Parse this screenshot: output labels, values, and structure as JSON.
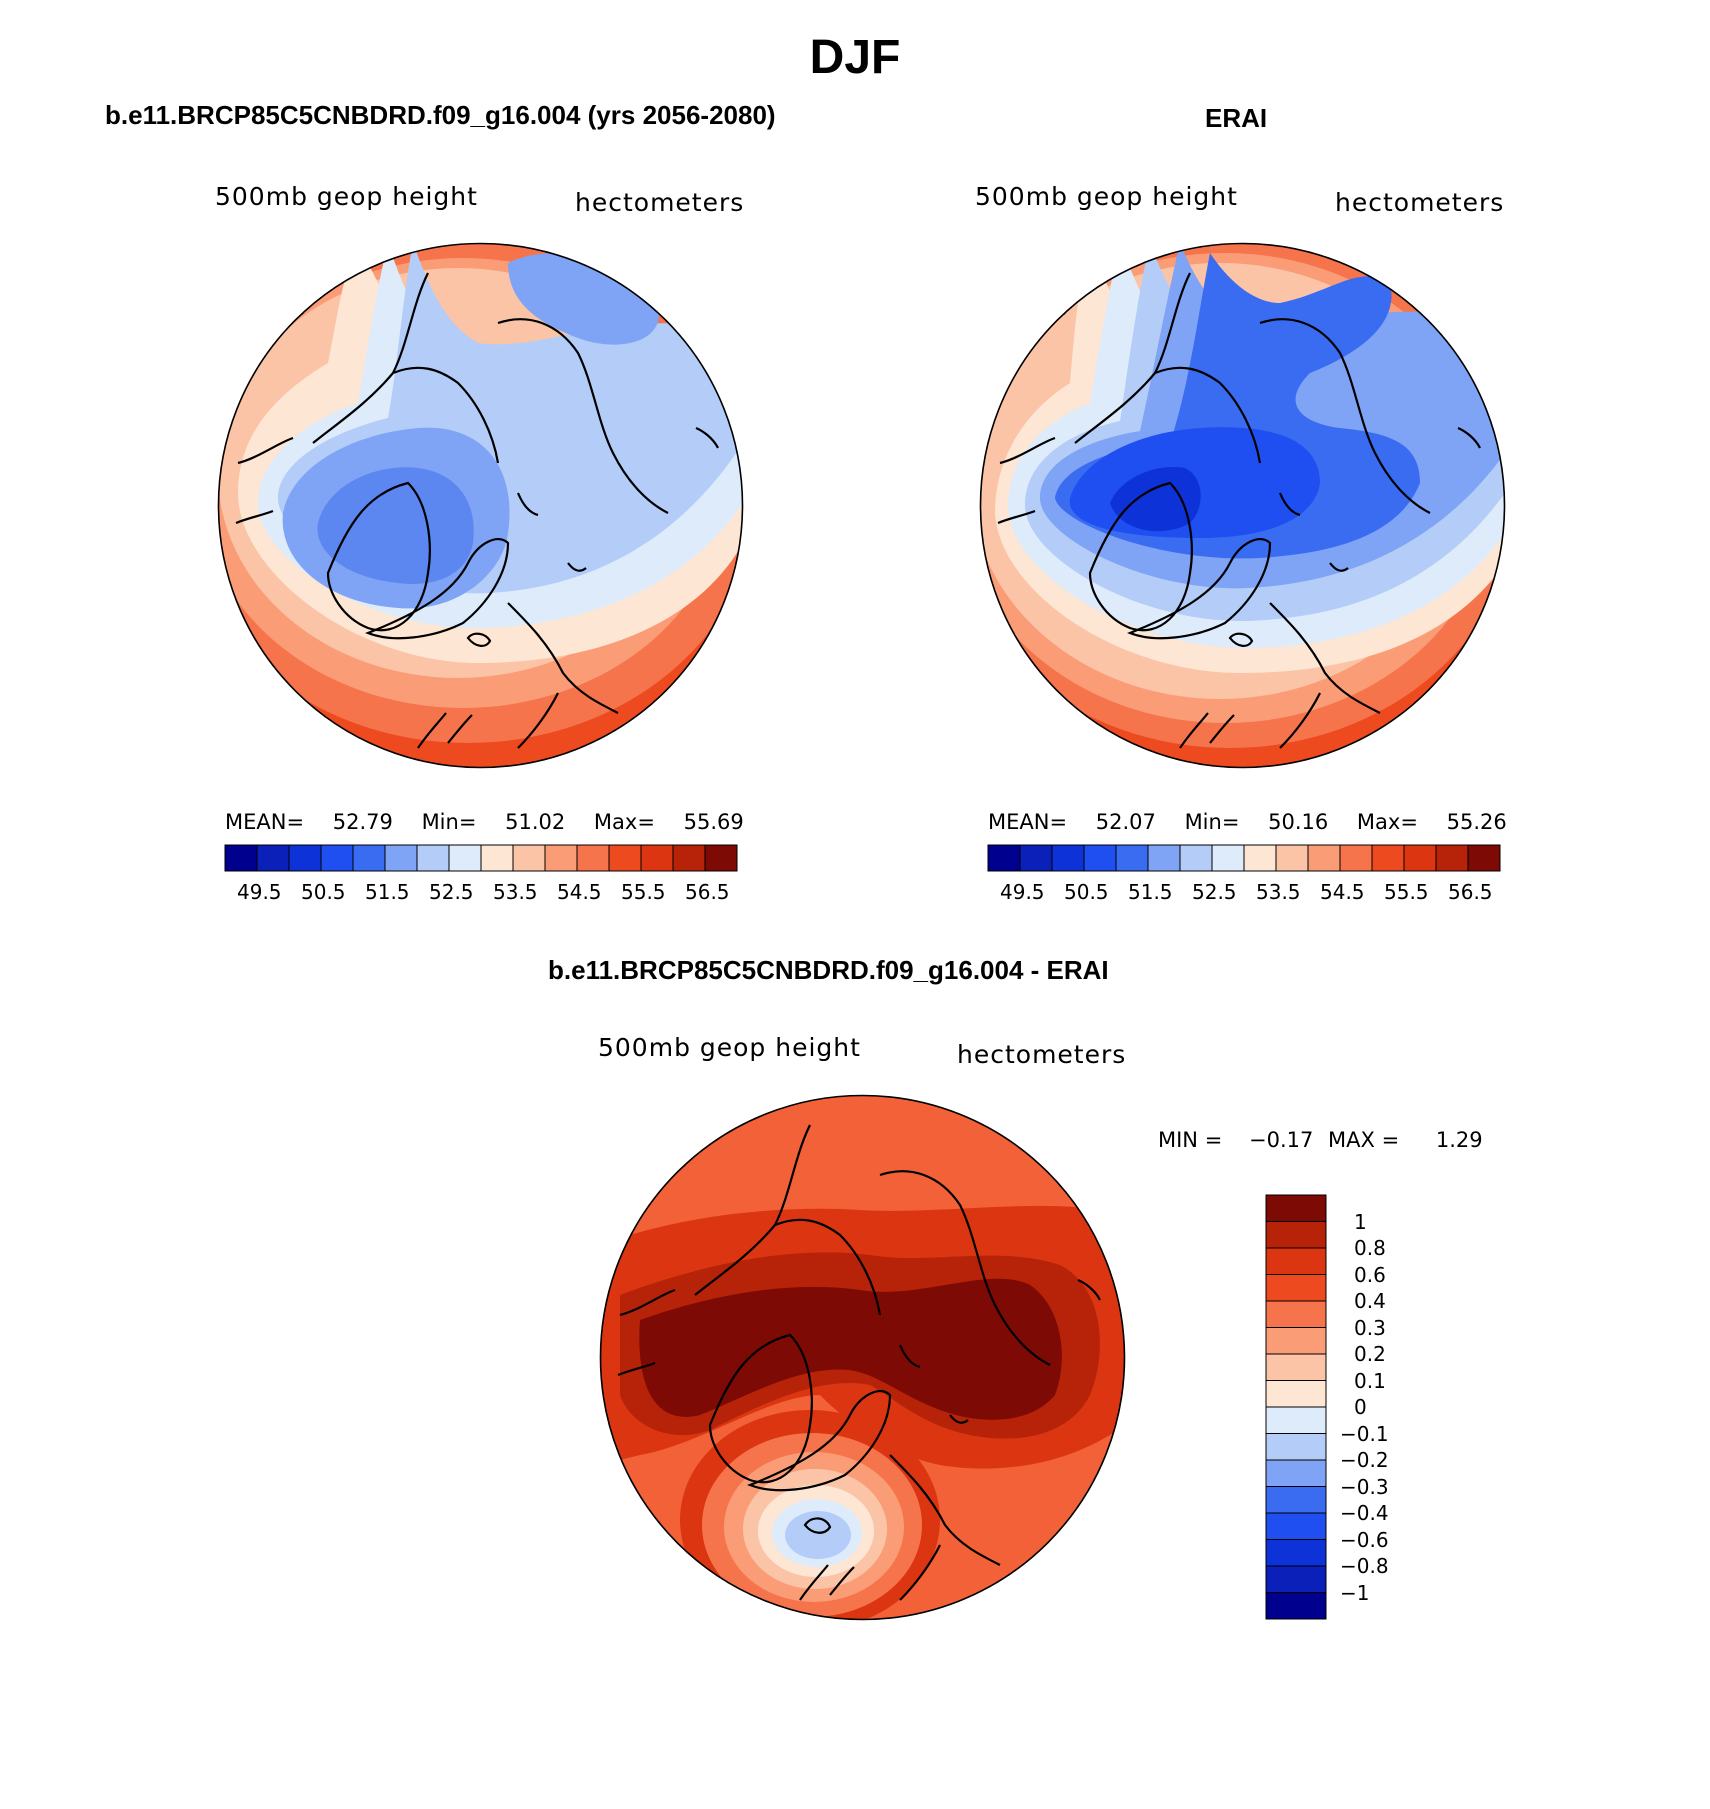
{
  "title": "DJF",
  "panels": [
    {
      "title": "b.e11.BRCP85C5CNBDRD.f09_g16.004 (yrs 2056-2080)",
      "field_label": "500mb geop height",
      "units": "hectometers",
      "stats": {
        "mean_label": "MEAN=",
        "mean": "52.79",
        "min_label": "Min=",
        "min": "51.02",
        "max_label": "Max=",
        "max": "55.69"
      }
    },
    {
      "title": "ERAI",
      "field_label": "500mb geop height",
      "units": "hectometers",
      "stats": {
        "mean_label": "MEAN=",
        "mean": "52.07",
        "min_label": "Min=",
        "min": "50.16",
        "max_label": "Max=",
        "max": "55.26"
      }
    },
    {
      "title": "b.e11.BRCP85C5CNBDRD.f09_g16.004 - ERAI",
      "field_label": "500mb geop height",
      "units": "hectometers",
      "stats": {
        "min_label": "MIN =",
        "min": "−0.17",
        "max_label": "MAX =",
        "max": "1.29"
      }
    }
  ],
  "colorbar_abs": {
    "colors": [
      "#00008f",
      "#0a20b8",
      "#0d33d8",
      "#1f4ff0",
      "#3a6cf2",
      "#7fa3f5",
      "#b3cdf8",
      "#deebfb",
      "#fde6d4",
      "#fcc4a6",
      "#fa9d77",
      "#f6744b",
      "#ee4a20",
      "#db3611",
      "#b62308",
      "#7d0a04"
    ],
    "ticks": [
      "49.5",
      "50.5",
      "51.5",
      "52.5",
      "53.5",
      "54.5",
      "55.5",
      "56.5"
    ]
  },
  "colorbar_diff": {
    "colors": [
      "#7d0a04",
      "#b62308",
      "#db3611",
      "#ee4a20",
      "#f6744b",
      "#fa9d77",
      "#fcc4a6",
      "#fde6d4",
      "#deebfb",
      "#b3cdf8",
      "#7fa3f5",
      "#3a6cf2",
      "#1f4ff0",
      "#0d33d8",
      "#0a20b8",
      "#00008f"
    ],
    "ticks": [
      "1",
      "0.8",
      "0.6",
      "0.4",
      "0.3",
      "0.2",
      "0.1",
      "0",
      "−0.1",
      "−0.2",
      "−0.3",
      "−0.4",
      "−0.6",
      "−0.8",
      "−1"
    ]
  }
}
